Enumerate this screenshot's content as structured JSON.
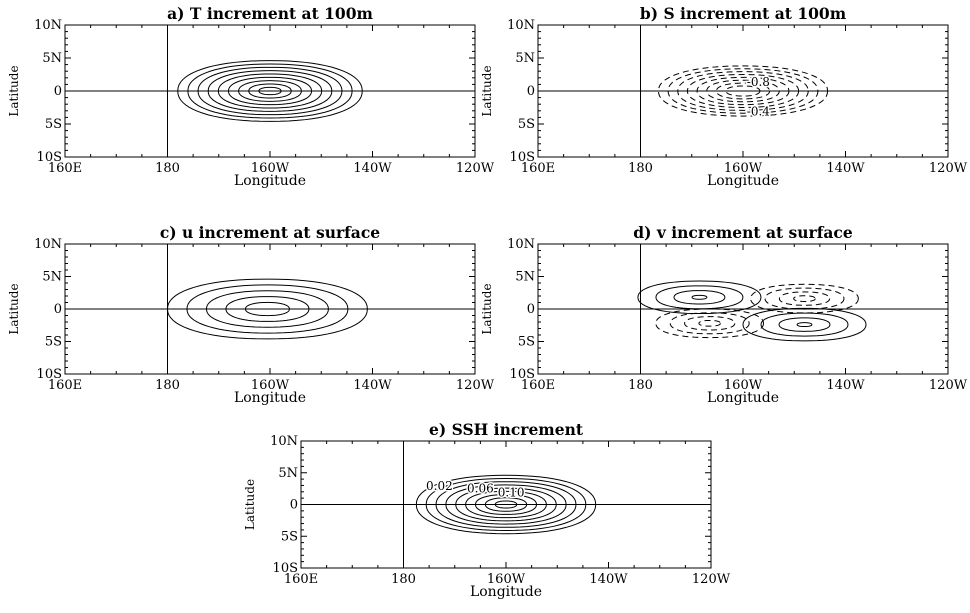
{
  "figure": {
    "panels": [
      {
        "id": "a",
        "title": "a) T increment at 100m"
      },
      {
        "id": "b",
        "title": "b) S increment at 100m"
      },
      {
        "id": "c",
        "title": "c) u increment at surface"
      },
      {
        "id": "d",
        "title": "d) v increment at surface"
      },
      {
        "id": "e",
        "title": "e) SSH increment"
      }
    ],
    "xlabel": "Longitude",
    "ylabel": "Latitude",
    "x_ticks": [
      "160E",
      "180",
      "160W",
      "140W",
      "120W"
    ],
    "y_ticks": [
      "10N",
      "5N",
      "0",
      "5S",
      "10S"
    ]
  },
  "chart_data": [
    {
      "panel": "a",
      "type": "contour",
      "title": "a) T increment at 100m",
      "xlabel": "Longitude",
      "ylabel": "Latitude",
      "xlim": [
        160,
        240
      ],
      "ylim": [
        -10,
        10
      ],
      "reference_lines": {
        "lon": 180,
        "lat": 0
      },
      "contours": [
        {
          "center": [
            200,
            0
          ],
          "rx": 18,
          "ry": 4.6,
          "style": "solid",
          "count": 9,
          "min_frac": 0.12
        }
      ]
    },
    {
      "panel": "b",
      "type": "contour",
      "title": "b) S increment at 100m",
      "xlabel": "Longitude",
      "ylabel": "Latitude",
      "xlim": [
        160,
        240
      ],
      "ylim": [
        -10,
        10
      ],
      "reference_lines": {
        "lon": 180,
        "lat": 0
      },
      "contours": [
        {
          "center": [
            200,
            0
          ],
          "rx": 16.5,
          "ry": 3.8,
          "style": "dashed",
          "count": 8,
          "min_frac": 0.2
        }
      ],
      "labels": [
        {
          "text": "-0.8",
          "lon": 203,
          "lat": 1.4
        },
        {
          "text": "-0.4",
          "lon": 203,
          "lat": -3.1
        }
      ]
    },
    {
      "panel": "c",
      "type": "contour",
      "title": "c) u increment at surface",
      "xlabel": "Longitude",
      "ylabel": "Latitude",
      "xlim": [
        160,
        240
      ],
      "ylim": [
        -10,
        10
      ],
      "reference_lines": {
        "lon": 180,
        "lat": 0
      },
      "contours": [
        {
          "center": [
            199.5,
            0
          ],
          "rx": 19.5,
          "ry": 4.6,
          "style": "solid",
          "count": 5,
          "min_frac": 0.22
        }
      ]
    },
    {
      "panel": "d",
      "type": "contour",
      "title": "d) v increment at surface",
      "xlabel": "Longitude",
      "ylabel": "Latitude",
      "xlim": [
        160,
        240
      ],
      "ylim": [
        -10,
        10
      ],
      "reference_lines": {
        "lon": 180,
        "lat": 0
      },
      "contours": [
        {
          "center": [
            191.5,
            1.8
          ],
          "rx": 12,
          "ry": 2.5,
          "style": "solid",
          "count": 4,
          "min_frac": 0.12
        },
        {
          "center": [
            212,
            1.6
          ],
          "rx": 10.5,
          "ry": 2.2,
          "style": "dashed",
          "count": 4,
          "min_frac": 0.2
        },
        {
          "center": [
            193.5,
            -2.2
          ],
          "rx": 10.5,
          "ry": 2.2,
          "style": "dashed",
          "count": 4,
          "min_frac": 0.2
        },
        {
          "center": [
            212,
            -2.4
          ],
          "rx": 12,
          "ry": 2.5,
          "style": "solid",
          "count": 4,
          "min_frac": 0.12
        }
      ]
    },
    {
      "panel": "e",
      "type": "contour",
      "title": "e) SSH increment",
      "xlabel": "Longitude",
      "ylabel": "Latitude",
      "xlim": [
        160,
        240
      ],
      "ylim": [
        -10,
        10
      ],
      "reference_lines": {
        "lon": 180,
        "lat": 0
      },
      "contours": [
        {
          "center": [
            200,
            0
          ],
          "rx": 17.5,
          "ry": 4.6,
          "style": "solid",
          "count": 9,
          "min_frac": 0.12
        }
      ],
      "labels": [
        {
          "text": "0.02",
          "lon": 187,
          "lat": 2.9
        },
        {
          "text": "0.06",
          "lon": 195,
          "lat": 2.5
        },
        {
          "text": "0.10",
          "lon": 201,
          "lat": 1.9
        }
      ]
    }
  ]
}
